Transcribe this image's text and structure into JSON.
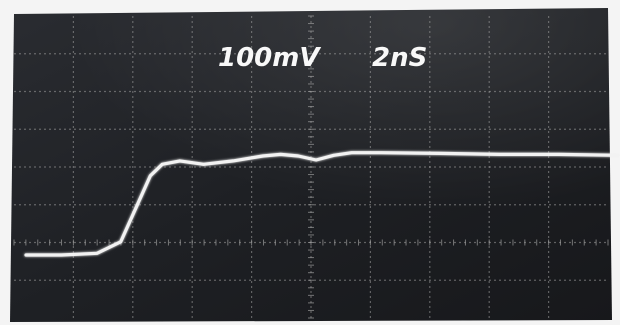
{
  "screen": {
    "volts_per_div": "100mV",
    "time_per_div": "2nS"
  },
  "colors": {
    "trace": "#f2f2f2",
    "grid": "#9c9c9c",
    "screen": "#1f2125",
    "frame": "#f4f4f4"
  },
  "trace": {
    "x": [
      0,
      0.6,
      1.2,
      1.6,
      1.9,
      2.1,
      2.3,
      2.6,
      3.0,
      3.5,
      4.0,
      4.3,
      4.6,
      4.9,
      5.2,
      5.5,
      6.0,
      7.0,
      8.0,
      9.0,
      10.0
    ],
    "y": [
      0,
      0,
      0.05,
      0.4,
      1.6,
      2.4,
      2.75,
      2.85,
      2.75,
      2.85,
      3.0,
      3.05,
      3.0,
      2.88,
      3.02,
      3.1,
      3.1,
      3.08,
      3.05,
      3.05,
      3.02
    ]
  }
}
